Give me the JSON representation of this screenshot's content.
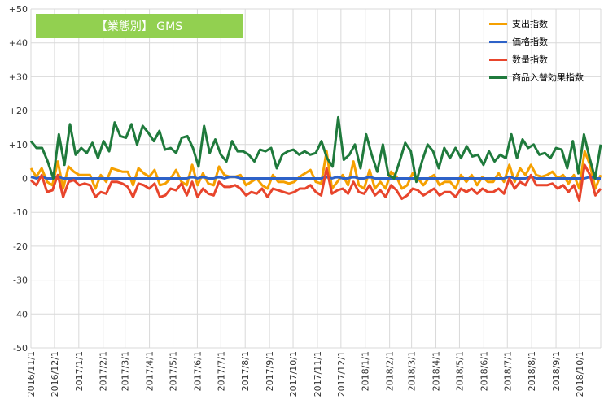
{
  "chart_data": {
    "type": "line",
    "title": "【業態別】 GMS",
    "ylim": [
      -50,
      50
    ],
    "yticks": [
      "+50",
      "+40",
      "+30",
      "+20",
      "+10",
      "0",
      "-10",
      "-20",
      "-30",
      "-40",
      "-50"
    ],
    "xticks": [
      "2016/11/1",
      "2016/12/1",
      "2017/1/1",
      "2017/2/1",
      "2017/3/1",
      "2017/4/1",
      "2017/5/1",
      "2017/6/1",
      "2017/7/1",
      "2017/8/1",
      "2017/9/1",
      "2017/10/1",
      "2017/11/1",
      "2017/12/1",
      "2018/1/1",
      "2018/2/1",
      "2018/3/1",
      "2018/4/1",
      "2018/5/1",
      "2018/6/1",
      "2018/7/1",
      "2018/8/1",
      "2018/9/1",
      "2018/10/1"
    ],
    "x_range": [
      "2016-11-01",
      "2018-10-28"
    ],
    "grid": true,
    "legend_position": "top-right",
    "series": [
      {
        "name": "支出指数",
        "color": "#f5a000",
        "values": [
          3,
          0.5,
          3,
          -1,
          -2,
          5,
          -3,
          3.5,
          2,
          1,
          1,
          1,
          -3,
          1,
          -1,
          3,
          2.5,
          2,
          2,
          -2,
          3,
          1.5,
          0.5,
          2.5,
          -2,
          -1.5,
          0,
          2.5,
          -1,
          -2,
          4,
          -2,
          1.5,
          -1.5,
          -2,
          3.5,
          1,
          0.5,
          0.5,
          1,
          -2,
          -1,
          0,
          -2,
          -3,
          1,
          -1,
          -1,
          -1.5,
          -1,
          0.5,
          1.5,
          2.5,
          -1,
          -1.5,
          8,
          -3,
          -1,
          1,
          -2,
          5,
          -2,
          -3,
          2.5,
          -3,
          -1,
          -3,
          2,
          0.5,
          -3,
          -2,
          1.5,
          0,
          -2,
          0,
          1,
          -2,
          -1,
          -1,
          -3,
          1,
          -1,
          1,
          -2,
          0.5,
          -1,
          -1,
          1.5,
          -1,
          4,
          -1,
          3,
          1,
          4,
          1,
          0.5,
          1,
          2,
          0,
          1,
          -1.5,
          1,
          -3,
          8,
          4,
          -3,
          1
        ]
      },
      {
        "name": "価格指数",
        "color": "#2e62c8",
        "values": [
          0.5,
          0,
          0.5,
          0,
          0,
          0.5,
          0,
          0,
          0,
          0,
          0,
          0,
          0,
          0,
          0,
          0,
          0,
          0,
          0,
          0,
          0,
          0,
          0,
          0,
          0,
          0,
          0,
          0,
          0,
          0,
          0.5,
          0,
          0.5,
          0,
          0,
          0.5,
          0,
          0.5,
          0.5,
          0,
          0,
          0,
          0,
          0,
          0,
          0,
          0,
          0,
          0,
          0,
          0,
          0,
          0,
          0,
          0,
          0.5,
          0,
          0.5,
          0,
          0,
          0.5,
          0,
          0,
          0.5,
          0,
          0,
          0,
          0,
          0,
          0,
          0,
          0,
          0,
          0,
          0,
          0,
          0,
          0,
          0,
          0,
          0,
          0,
          0,
          0,
          0,
          0,
          0,
          0,
          0,
          0.5,
          0,
          0,
          0,
          0.5,
          0,
          0,
          0,
          0,
          0,
          0,
          0,
          0,
          0,
          0,
          0.5,
          0,
          0
        ]
      },
      {
        "name": "数量指数",
        "color": "#e8452c",
        "values": [
          -0.5,
          -2,
          1,
          -4,
          -3.5,
          1,
          -5.5,
          -1,
          -0.5,
          -2,
          -1.5,
          -2,
          -5.5,
          -4,
          -4.5,
          -1,
          -1,
          -1.5,
          -2.5,
          -5.5,
          -1.5,
          -2,
          -3,
          -1.5,
          -5.5,
          -5,
          -3,
          -3.5,
          -1.5,
          -5,
          -1,
          -5.5,
          -3,
          -4.5,
          -5,
          -1,
          -2.5,
          -2.5,
          -2,
          -3,
          -5,
          -4,
          -4.5,
          -3,
          -5.5,
          -3,
          -3.5,
          -4,
          -4.5,
          -4,
          -3,
          -3,
          -2,
          -4,
          -5,
          3,
          -4.5,
          -3.5,
          -3,
          -4.5,
          -1,
          -4,
          -4.5,
          -2,
          -5,
          -3.5,
          -5.5,
          -2,
          -3.5,
          -6,
          -5,
          -3,
          -3.5,
          -5,
          -4,
          -3,
          -5,
          -4,
          -4,
          -5.5,
          -3,
          -4,
          -3,
          -4.5,
          -3,
          -4,
          -4,
          -3,
          -4.5,
          0,
          -3,
          -1,
          -2,
          1,
          -2,
          -2,
          -2,
          -1.5,
          -3,
          -2,
          -4,
          -2,
          -6.5,
          4,
          1,
          -5,
          -3
        ]
      },
      {
        "name": "商品入替効果指数",
        "color": "#1f7a3c",
        "values": [
          11,
          9,
          9,
          5,
          0,
          13,
          4,
          16,
          7,
          9,
          7.5,
          10.5,
          6,
          11,
          8,
          16.5,
          12.5,
          12,
          16,
          10,
          15.5,
          13.5,
          11,
          14,
          8.5,
          9,
          7.5,
          12,
          12.5,
          9,
          3.5,
          15.5,
          7.5,
          11.5,
          7,
          5,
          11,
          8,
          8,
          7,
          5,
          8.5,
          8,
          9,
          3,
          7,
          8,
          8.5,
          7,
          8,
          7,
          7.5,
          11,
          6,
          3.5,
          18,
          5.5,
          7,
          10,
          3,
          13,
          7,
          2,
          10,
          1,
          0,
          5,
          10.5,
          8,
          -1,
          5,
          10,
          8,
          3,
          9,
          6,
          9,
          6,
          9.5,
          6.5,
          7,
          4,
          8,
          5,
          7,
          6,
          13,
          6,
          11.5,
          9,
          10,
          7,
          7.5,
          6,
          9,
          8.5,
          3,
          11,
          1.5,
          13,
          6,
          0,
          10
        ]
      }
    ]
  }
}
